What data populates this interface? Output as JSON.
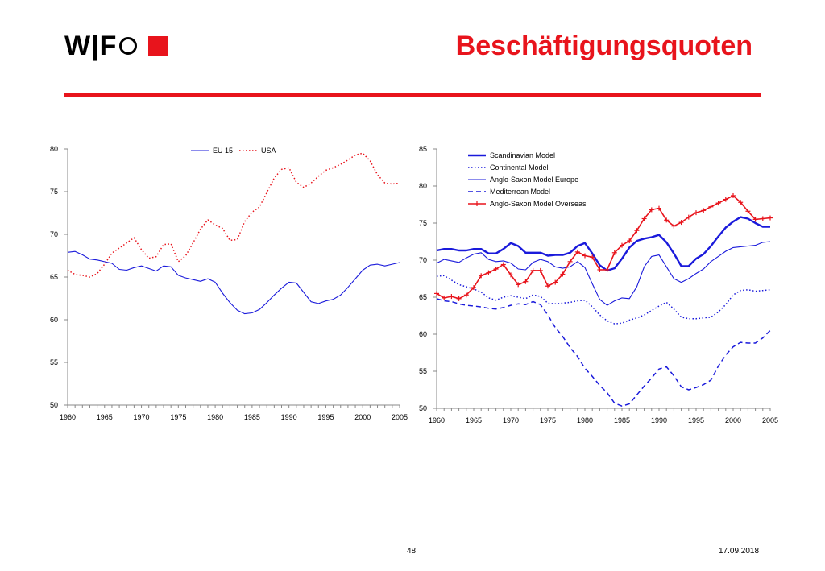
{
  "header": {
    "logo_text": "W|F",
    "title": "Beschäftigungsquoten"
  },
  "footer": {
    "page_number": "48",
    "date": "17.09.2018"
  },
  "colors": {
    "accent_red": "#e8141c",
    "line_blue": "#1a1adb",
    "line_red": "#e8141c"
  },
  "chart_data": [
    {
      "type": "line",
      "title": "",
      "xlabel": "",
      "ylabel": "",
      "xlim": [
        1960,
        2005
      ],
      "ylim": [
        50,
        80
      ],
      "x_ticks": [
        1960,
        1965,
        1970,
        1975,
        1980,
        1985,
        1990,
        1995,
        2000,
        2005
      ],
      "y_ticks": [
        50,
        55,
        60,
        65,
        70,
        75,
        80
      ],
      "grid": false,
      "legend_position": "top-center",
      "x": [
        1960,
        1961,
        1962,
        1963,
        1964,
        1965,
        1966,
        1967,
        1968,
        1969,
        1970,
        1971,
        1972,
        1973,
        1974,
        1975,
        1976,
        1977,
        1978,
        1979,
        1980,
        1981,
        1982,
        1983,
        1984,
        1985,
        1986,
        1987,
        1988,
        1989,
        1990,
        1991,
        1992,
        1993,
        1994,
        1995,
        1996,
        1997,
        1998,
        1999,
        2000,
        2001,
        2002,
        2003,
        2004,
        2005
      ],
      "series": [
        {
          "name": "EU 15",
          "style": "solid",
          "color": "#1a1adb",
          "values": [
            67.9,
            68.0,
            67.6,
            67.1,
            67.0,
            66.8,
            66.6,
            65.9,
            65.8,
            66.1,
            66.3,
            66.0,
            65.7,
            66.3,
            66.2,
            65.2,
            64.9,
            64.7,
            64.5,
            64.8,
            64.4,
            63.1,
            62.0,
            61.1,
            60.7,
            60.8,
            61.2,
            62.0,
            62.9,
            63.7,
            64.4,
            64.3,
            63.2,
            62.1,
            61.9,
            62.2,
            62.4,
            62.9,
            63.8,
            64.8,
            65.8,
            66.4,
            66.5,
            66.3,
            66.5,
            66.7
          ]
        },
        {
          "name": "USA",
          "style": "dotted",
          "color": "#e8141c",
          "values": [
            65.8,
            65.3,
            65.2,
            65.0,
            65.4,
            66.5,
            67.8,
            68.4,
            69.0,
            69.6,
            68.2,
            67.2,
            67.4,
            68.8,
            68.9,
            66.8,
            67.5,
            69.0,
            70.6,
            71.7,
            71.1,
            70.7,
            69.3,
            69.4,
            71.5,
            72.6,
            73.2,
            74.9,
            76.6,
            77.6,
            77.8,
            76.1,
            75.5,
            76.0,
            76.8,
            77.5,
            77.8,
            78.2,
            78.7,
            79.3,
            79.5,
            78.6,
            77.0,
            76.0,
            75.9,
            76.0
          ]
        }
      ]
    },
    {
      "type": "line",
      "title": "",
      "xlabel": "",
      "ylabel": "",
      "xlim": [
        1960,
        2005
      ],
      "ylim": [
        50,
        85
      ],
      "x_ticks": [
        1960,
        1965,
        1970,
        1975,
        1980,
        1985,
        1990,
        1995,
        2000,
        2005
      ],
      "y_ticks": [
        50,
        55,
        60,
        65,
        70,
        75,
        80,
        85
      ],
      "grid": false,
      "legend_position": "top-left",
      "x": [
        1960,
        1961,
        1962,
        1963,
        1964,
        1965,
        1966,
        1967,
        1968,
        1969,
        1970,
        1971,
        1972,
        1973,
        1974,
        1975,
        1976,
        1977,
        1978,
        1979,
        1980,
        1981,
        1982,
        1983,
        1984,
        1985,
        1986,
        1987,
        1988,
        1989,
        1990,
        1991,
        1992,
        1993,
        1994,
        1995,
        1996,
        1997,
        1998,
        1999,
        2000,
        2001,
        2002,
        2003,
        2004,
        2005
      ],
      "series": [
        {
          "name": "Scandinavian Model",
          "style": "thick",
          "color": "#1a1adb",
          "values": [
            71.3,
            71.5,
            71.5,
            71.3,
            71.3,
            71.5,
            71.5,
            70.9,
            70.9,
            71.5,
            72.3,
            71.9,
            71.0,
            71.0,
            71.0,
            70.6,
            70.7,
            70.7,
            71.0,
            71.9,
            72.3,
            70.9,
            69.3,
            68.6,
            68.9,
            70.2,
            71.7,
            72.6,
            72.9,
            73.1,
            73.4,
            72.4,
            70.9,
            69.2,
            69.2,
            70.2,
            70.8,
            71.9,
            73.2,
            74.4,
            75.2,
            75.8,
            75.6,
            75.0,
            74.5,
            74.5
          ]
        },
        {
          "name": "Continental Model",
          "style": "dotted",
          "color": "#1a1adb",
          "values": [
            67.8,
            67.9,
            67.3,
            66.7,
            66.4,
            66.1,
            65.7,
            64.9,
            64.6,
            65.0,
            65.2,
            65.0,
            64.8,
            65.3,
            65.1,
            64.2,
            64.1,
            64.2,
            64.3,
            64.5,
            64.6,
            63.7,
            62.6,
            61.8,
            61.4,
            61.5,
            61.9,
            62.2,
            62.6,
            63.2,
            63.8,
            64.3,
            63.4,
            62.3,
            62.1,
            62.1,
            62.2,
            62.3,
            63.0,
            64.0,
            65.3,
            65.9,
            66.0,
            65.8,
            65.9,
            66.0
          ]
        },
        {
          "name": "Anglo-Saxon Model Europe",
          "style": "solid",
          "color": "#1a1adb",
          "values": [
            69.6,
            70.1,
            69.9,
            69.7,
            70.3,
            70.8,
            71.0,
            70.1,
            69.8,
            69.9,
            69.6,
            68.8,
            68.7,
            69.7,
            70.1,
            69.8,
            69.1,
            68.9,
            69.1,
            69.8,
            69.0,
            66.8,
            64.7,
            63.9,
            64.5,
            64.9,
            64.8,
            66.4,
            69.1,
            70.5,
            70.7,
            69.1,
            67.5,
            67.0,
            67.5,
            68.2,
            68.8,
            69.8,
            70.5,
            71.2,
            71.7,
            71.8,
            71.9,
            72.0,
            72.4,
            72.5
          ]
        },
        {
          "name": "Mediterrean Model",
          "style": "dashed",
          "color": "#1a1adb",
          "values": [
            64.8,
            64.5,
            64.4,
            64.1,
            63.9,
            63.8,
            63.7,
            63.5,
            63.4,
            63.6,
            63.9,
            64.1,
            64.0,
            64.4,
            64.0,
            62.6,
            60.9,
            59.7,
            58.2,
            57.0,
            55.4,
            54.3,
            53.1,
            52.1,
            50.7,
            50.3,
            50.6,
            51.8,
            53.0,
            54.1,
            55.3,
            55.6,
            54.4,
            52.9,
            52.5,
            52.8,
            53.2,
            53.8,
            55.7,
            57.2,
            58.3,
            58.9,
            58.8,
            58.8,
            59.5,
            60.5
          ]
        },
        {
          "name": "Anglo-Saxon Model Overseas",
          "style": "markers",
          "color": "#e8141c",
          "values": [
            65.5,
            64.9,
            65.1,
            64.8,
            65.3,
            66.3,
            67.9,
            68.3,
            68.8,
            69.4,
            68.0,
            66.7,
            67.1,
            68.6,
            68.6,
            66.5,
            67.0,
            68.1,
            69.8,
            71.1,
            70.6,
            70.4,
            68.7,
            68.7,
            71.0,
            72.0,
            72.6,
            74.0,
            75.6,
            76.8,
            77.0,
            75.4,
            74.6,
            75.1,
            75.8,
            76.4,
            76.7,
            77.2,
            77.7,
            78.2,
            78.7,
            77.8,
            76.6,
            75.5,
            75.6,
            75.7
          ]
        }
      ]
    }
  ]
}
